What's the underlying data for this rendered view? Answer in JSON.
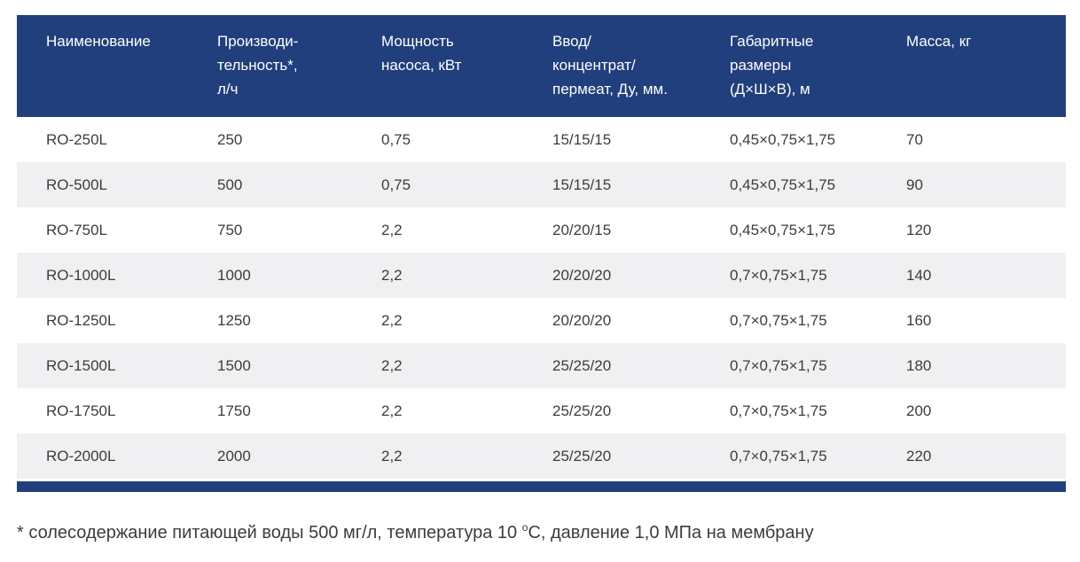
{
  "table": {
    "headers": [
      "Наименование",
      "Производи-\nтельность*,\nл/ч",
      "Мощность\nнасоса, кВт",
      "Ввод/\nконцентрат/\nпермеат, Ду, мм.",
      "Габаритные\nразмеры\n(Д×Ш×В), м",
      "Масса, кг"
    ],
    "rows": [
      [
        "RO-250L",
        "250",
        "0,75",
        "15/15/15",
        "0,45×0,75×1,75",
        "70"
      ],
      [
        "RO-500L",
        "500",
        "0,75",
        "15/15/15",
        "0,45×0,75×1,75",
        "90"
      ],
      [
        "RO-750L",
        "750",
        "2,2",
        "20/20/15",
        "0,45×0,75×1,75",
        "120"
      ],
      [
        "RO-1000L",
        "1000",
        "2,2",
        "20/20/20",
        "0,7×0,75×1,75",
        "140"
      ],
      [
        "RO-1250L",
        "1250",
        "2,2",
        "20/20/20",
        "0,7×0,75×1,75",
        "160"
      ],
      [
        "RO-1500L",
        "1500",
        "2,2",
        "25/25/20",
        "0,7×0,75×1,75",
        "180"
      ],
      [
        "RO-1750L",
        "1750",
        "2,2",
        "25/25/20",
        "0,7×0,75×1,75",
        "200"
      ],
      [
        "RO-2000L",
        "2000",
        "2,2",
        "25/25/20",
        "0,7×0,75×1,75",
        "220"
      ]
    ]
  },
  "footnote": {
    "text_before": "* солесодержание питающей воды 500 мг/л, температура 10 ",
    "degree_mark": "o",
    "text_after": "С, давление 1,0 МПа на мембрану"
  },
  "colors": {
    "header_bg": "#213f7c",
    "header_text": "#ffffff",
    "stripe_bg": "#f0f0f2"
  }
}
